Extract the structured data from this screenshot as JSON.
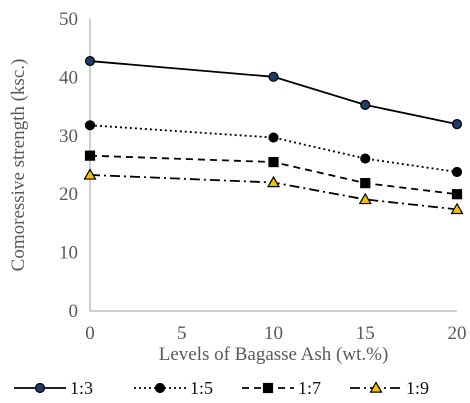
{
  "chart_data": {
    "type": "line",
    "title": "",
    "xlabel": "Levels of Bagasse Ash (wt.%)",
    "ylabel": "Comoressive strength (ksc.)",
    "x_range": [
      0,
      20
    ],
    "xticks": [
      0,
      5,
      10,
      15,
      20
    ],
    "ylim": [
      0,
      50
    ],
    "yticks": [
      0,
      10,
      20,
      30,
      40,
      50
    ],
    "grid": false,
    "legend_position": "bottom",
    "series": [
      {
        "name": "1:3",
        "x": [
          0,
          10,
          15,
          20
        ],
        "y": [
          42.8,
          40.1,
          35.3,
          32.0
        ],
        "line": "solid",
        "marker": "circle",
        "marker_color": "#1f3c66",
        "line_color": "#000000"
      },
      {
        "name": "1:5",
        "x": [
          0,
          10,
          15,
          20
        ],
        "y": [
          31.8,
          29.7,
          26.1,
          23.8
        ],
        "line": "dotted",
        "marker": "circle",
        "marker_color": "#000000",
        "line_color": "#000000"
      },
      {
        "name": "1:7",
        "x": [
          0,
          10,
          15,
          20
        ],
        "y": [
          26.6,
          25.5,
          21.9,
          20.0
        ],
        "line": "dashed",
        "marker": "square",
        "marker_color": "#000000",
        "line_color": "#000000"
      },
      {
        "name": "1:9",
        "x": [
          0,
          10,
          15,
          20
        ],
        "y": [
          23.3,
          22.0,
          19.1,
          17.4
        ],
        "line": "dashdot",
        "marker": "triangle",
        "marker_color": "#f2c200",
        "line_color": "#000000"
      }
    ]
  }
}
